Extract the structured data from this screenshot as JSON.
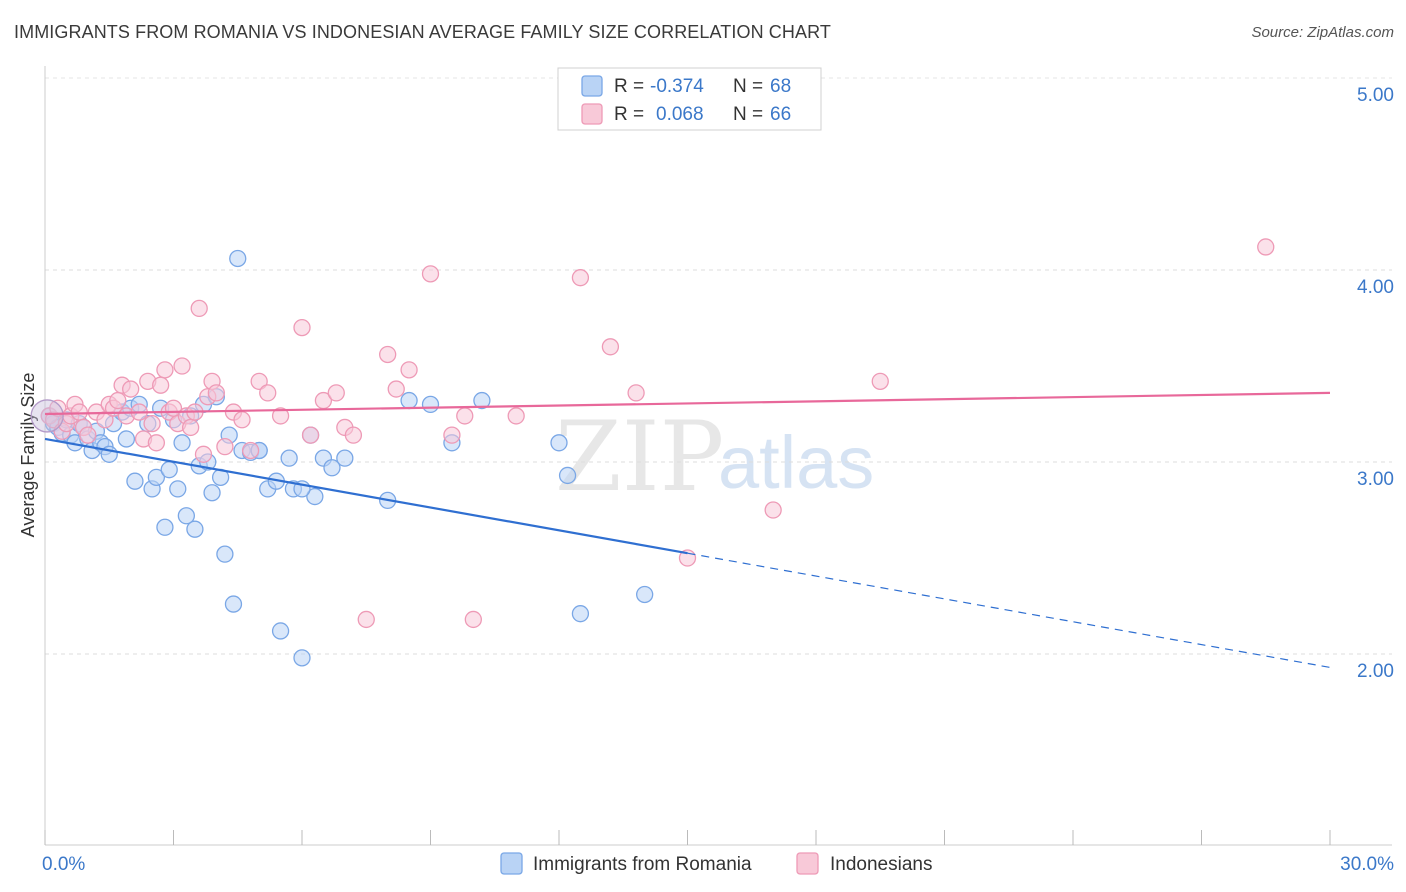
{
  "title": "IMMIGRANTS FROM ROMANIA VS INDONESIAN AVERAGE FAMILY SIZE CORRELATION CHART",
  "source": "Source: ZipAtlas.com",
  "watermark": {
    "zip": "ZIP",
    "atlas": "atlas"
  },
  "legend": {
    "r_label": "R =",
    "n_label": "N =",
    "rows": [
      {
        "r": "-0.374",
        "n": "68",
        "fill": "#b9d3f5",
        "stroke": "#7aa7e6"
      },
      {
        "r": "0.068",
        "n": "66",
        "fill": "#f8c9d8",
        "stroke": "#ee9ab6"
      }
    ]
  },
  "chart_data": {
    "type": "scatter",
    "xlabel": "",
    "ylabel": "Average Family Size",
    "xlim": [
      0,
      30
    ],
    "ylim": [
      1.0,
      5.1
    ],
    "x_tick_labels": [
      "0.0%",
      "30.0%"
    ],
    "y_ticks": [
      2.0,
      3.0,
      4.0,
      5.0
    ],
    "y_tick_labels": [
      "2.00",
      "3.00",
      "4.00",
      "5.00"
    ],
    "grid": "horizontal dashed",
    "legend_position": "top-center",
    "series": [
      {
        "name": "Immigrants from Romania",
        "color": "#7aa7e6",
        "fill": "#b9d3f5",
        "line_color": "#2f6fd1",
        "trend": {
          "x0": 0,
          "y0": 3.12,
          "x1": 30,
          "y1": 1.93,
          "solid_until": 15
        },
        "points": [
          [
            0.1,
            3.24
          ],
          [
            0.2,
            3.2
          ],
          [
            0.3,
            3.18
          ],
          [
            0.4,
            3.15
          ],
          [
            0.5,
            3.22
          ],
          [
            0.6,
            3.14
          ],
          [
            0.7,
            3.1
          ],
          [
            0.8,
            3.2
          ],
          [
            0.9,
            3.18
          ],
          [
            1.0,
            3.12
          ],
          [
            1.1,
            3.06
          ],
          [
            1.2,
            3.16
          ],
          [
            1.3,
            3.1
          ],
          [
            1.4,
            3.08
          ],
          [
            1.5,
            3.04
          ],
          [
            1.6,
            3.2
          ],
          [
            1.8,
            3.26
          ],
          [
            1.9,
            3.12
          ],
          [
            2.0,
            3.28
          ],
          [
            2.1,
            2.9
          ],
          [
            2.2,
            3.3
          ],
          [
            2.4,
            3.2
          ],
          [
            2.5,
            2.86
          ],
          [
            2.6,
            2.92
          ],
          [
            2.7,
            3.28
          ],
          [
            2.8,
            2.66
          ],
          [
            2.9,
            2.96
          ],
          [
            3.0,
            3.22
          ],
          [
            3.1,
            2.86
          ],
          [
            3.2,
            3.1
          ],
          [
            3.3,
            2.72
          ],
          [
            3.4,
            3.24
          ],
          [
            3.5,
            2.65
          ],
          [
            3.6,
            2.98
          ],
          [
            3.7,
            3.3
          ],
          [
            3.8,
            3.0
          ],
          [
            3.9,
            2.84
          ],
          [
            4.0,
            3.34
          ],
          [
            4.1,
            2.92
          ],
          [
            4.2,
            2.52
          ],
          [
            4.3,
            3.14
          ],
          [
            4.4,
            2.26
          ],
          [
            4.5,
            4.06
          ],
          [
            4.6,
            3.06
          ],
          [
            4.8,
            3.05
          ],
          [
            5.0,
            3.06
          ],
          [
            5.2,
            2.86
          ],
          [
            5.4,
            2.9
          ],
          [
            5.5,
            2.12
          ],
          [
            5.7,
            3.02
          ],
          [
            5.8,
            2.86
          ],
          [
            6.0,
            1.98
          ],
          [
            6.2,
            3.14
          ],
          [
            6.3,
            2.82
          ],
          [
            6.5,
            3.02
          ],
          [
            6.7,
            2.97
          ],
          [
            6.0,
            2.86
          ],
          [
            5.0,
            3.06
          ],
          [
            7.0,
            3.02
          ],
          [
            8.0,
            2.8
          ],
          [
            8.5,
            3.32
          ],
          [
            9.0,
            3.3
          ],
          [
            9.5,
            3.1
          ],
          [
            10.2,
            3.32
          ],
          [
            12.0,
            3.1
          ],
          [
            12.2,
            2.93
          ],
          [
            12.5,
            2.21
          ],
          [
            14.0,
            2.31
          ]
        ]
      },
      {
        "name": "Indonesians",
        "color": "#ee9ab6",
        "fill": "#f8c9d8",
        "line_color": "#e8689a",
        "trend": {
          "x0": 0,
          "y0": 3.25,
          "x1": 30,
          "y1": 3.36,
          "solid_until": 30
        },
        "points": [
          [
            0.1,
            3.24
          ],
          [
            0.2,
            3.22
          ],
          [
            0.3,
            3.28
          ],
          [
            0.4,
            3.16
          ],
          [
            0.5,
            3.2
          ],
          [
            0.6,
            3.24
          ],
          [
            0.7,
            3.3
          ],
          [
            0.8,
            3.26
          ],
          [
            0.9,
            3.18
          ],
          [
            1.0,
            3.14
          ],
          [
            1.2,
            3.26
          ],
          [
            1.4,
            3.22
          ],
          [
            1.5,
            3.3
          ],
          [
            1.6,
            3.28
          ],
          [
            1.7,
            3.32
          ],
          [
            1.8,
            3.4
          ],
          [
            1.9,
            3.24
          ],
          [
            2.0,
            3.38
          ],
          [
            2.2,
            3.26
          ],
          [
            2.3,
            3.12
          ],
          [
            2.4,
            3.42
          ],
          [
            2.5,
            3.2
          ],
          [
            2.6,
            3.1
          ],
          [
            2.7,
            3.4
          ],
          [
            2.8,
            3.48
          ],
          [
            2.9,
            3.26
          ],
          [
            3.0,
            3.28
          ],
          [
            3.1,
            3.2
          ],
          [
            3.2,
            3.5
          ],
          [
            3.3,
            3.24
          ],
          [
            3.4,
            3.18
          ],
          [
            3.5,
            3.26
          ],
          [
            3.6,
            3.8
          ],
          [
            3.7,
            3.04
          ],
          [
            3.8,
            3.34
          ],
          [
            3.9,
            3.42
          ],
          [
            4.0,
            3.36
          ],
          [
            4.2,
            3.08
          ],
          [
            4.4,
            3.26
          ],
          [
            4.6,
            3.22
          ],
          [
            4.8,
            3.06
          ],
          [
            5.0,
            3.42
          ],
          [
            5.2,
            3.36
          ],
          [
            5.5,
            3.24
          ],
          [
            6.0,
            3.7
          ],
          [
            6.2,
            3.14
          ],
          [
            6.5,
            3.32
          ],
          [
            6.8,
            3.36
          ],
          [
            7.0,
            3.18
          ],
          [
            7.2,
            3.14
          ],
          [
            7.5,
            2.18
          ],
          [
            8.0,
            3.56
          ],
          [
            8.2,
            3.38
          ],
          [
            8.5,
            3.48
          ],
          [
            9.0,
            3.98
          ],
          [
            9.5,
            3.14
          ],
          [
            9.8,
            3.24
          ],
          [
            10.0,
            2.18
          ],
          [
            11.0,
            3.24
          ],
          [
            12.5,
            3.96
          ],
          [
            13.2,
            3.6
          ],
          [
            13.8,
            3.36
          ],
          [
            15.0,
            2.5
          ],
          [
            17.0,
            2.75
          ],
          [
            19.5,
            3.42
          ],
          [
            28.5,
            4.12
          ]
        ]
      }
    ]
  },
  "bottom_legend": [
    "Immigrants from Romania",
    "Indonesians"
  ]
}
